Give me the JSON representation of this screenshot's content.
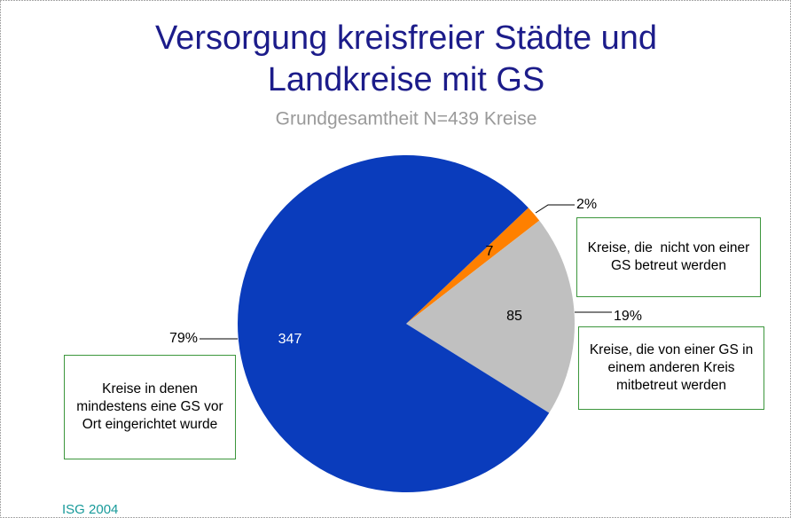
{
  "chart_data": {
    "type": "pie",
    "title": [
      "Versorgung kreisfreier Städte und",
      "Landkreise mit GS"
    ],
    "subtitle": "Grundgesamtheit N=439 Kreise",
    "categories": [
      "Kreise, die  nicht von einer GS betreut werden",
      "Kreise, die von einer GS in einem anderen Kreis mitbetreut werden",
      "Kreise in denen mindestens eine GS vor Ort eingerichtet wurde"
    ],
    "values": [
      7,
      85,
      347
    ],
    "share_labels": [
      "2%",
      "19%",
      "79%"
    ],
    "colors": [
      "#ff8000",
      "#c0c0c0",
      "#0a3cbc"
    ],
    "source": "ISG 2004"
  }
}
